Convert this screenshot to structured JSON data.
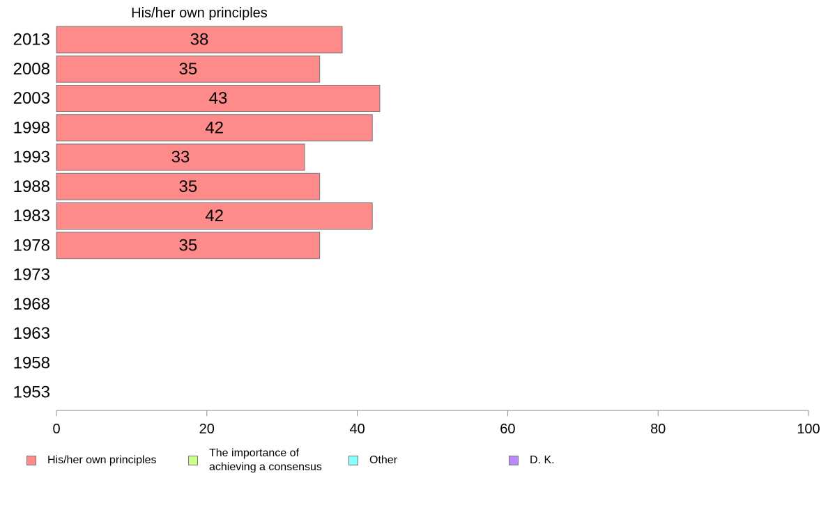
{
  "chart_data": {
    "type": "bar",
    "orientation": "horizontal",
    "title": "His/her own principles",
    "categories": [
      "2013",
      "2008",
      "2003",
      "1998",
      "1993",
      "1988",
      "1983",
      "1978",
      "1973",
      "1968",
      "1963",
      "1958",
      "1953"
    ],
    "series": [
      {
        "name": "His/her own principles",
        "color": "#ff8a8a",
        "values": [
          38,
          35,
          43,
          42,
          33,
          35,
          42,
          35,
          null,
          null,
          null,
          null,
          null
        ],
        "labels": [
          "38",
          "35",
          "43",
          "42",
          "33",
          "35",
          "42",
          "35",
          "",
          "",
          "",
          "",
          ""
        ]
      }
    ],
    "xlim": [
      0,
      100
    ],
    "x_ticks": [
      "0",
      "20",
      "40",
      "60",
      "80",
      "100"
    ],
    "xlabel": "",
    "ylabel": "",
    "grid": false,
    "legend_position": "bottom",
    "legend": [
      {
        "label": "His/her own principles",
        "color": "#ff8a8a"
      },
      {
        "label": "The importance of\nachieving a consensus",
        "color": "#ccff88"
      },
      {
        "label": "Other",
        "color": "#88ffff"
      },
      {
        "label": "D. K.",
        "color": "#bb88ff"
      }
    ]
  }
}
